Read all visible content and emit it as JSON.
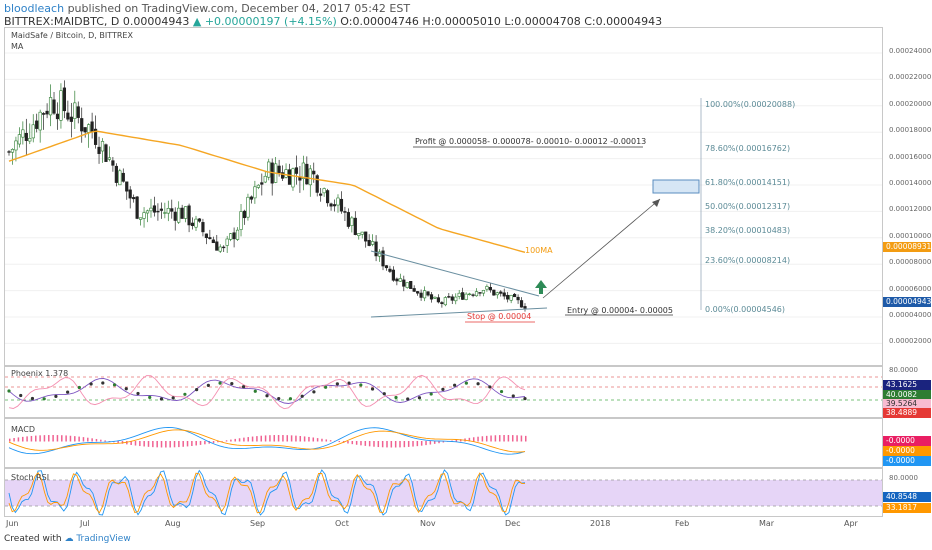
{
  "header": {
    "user": "bloodleach",
    "published_text": "published on TradingView.com, December 04, 2017 05:42 EST",
    "symbol": "BITTREX:MAIDBTC, D",
    "price": "0.00004943",
    "change": "+0.00000197 (+4.15%)",
    "ohlc": "O:0.00004746 H:0.00005010 L:0.00004708 C:0.00004943",
    "up_arrow": "▲"
  },
  "chart_title": "MaidSafe / Bitcoin, D, BITTREX",
  "indicator_label": "MA",
  "annotations": {
    "profit": "Profit @ 0.000058- 0.000078- 0.00010- 0.00012 -0.00013",
    "entry": "Entry @ 0.00004- 0.00005",
    "stop": "Stop @ 0.00004",
    "ma_label": "100MA"
  },
  "fibonacci": [
    {
      "label": "100.00%(0.00020088)",
      "value": 0.00020088
    },
    {
      "label": "78.60%(0.00016762)",
      "value": 0.00016762
    },
    {
      "label": "61.80%(0.00014151)",
      "value": 0.00014151
    },
    {
      "label": "50.00%(0.00012317)",
      "value": 0.00012317
    },
    {
      "label": "38.20%(0.00010483)",
      "value": 0.00010483
    },
    {
      "label": "23.60%(0.00008214)",
      "value": 8.214e-05
    },
    {
      "label": "0.00%(0.00004546)",
      "value": 4.546e-05
    }
  ],
  "price_axis": [
    "0.00024000",
    "0.00022000",
    "0.00020000",
    "0.00018000",
    "0.00016000",
    "0.00014000",
    "0.00012000",
    "0.00010000",
    "0.00008000",
    "0.00006000",
    "0.00004000",
    "0.00002000"
  ],
  "price_tags": [
    {
      "label": "0.00008931",
      "color": "#f39c12"
    },
    {
      "label": "0.00004943",
      "color": "#1e5aa8"
    }
  ],
  "phoenix": {
    "title": "Phoenix 1.378",
    "axis": "80.0000",
    "tags": [
      {
        "label": "43.1625",
        "color": "#1a237e"
      },
      {
        "label": "40.0082",
        "color": "#2e7d32"
      },
      {
        "label": "39.5264",
        "color": "#f8bbd0",
        "text": "#333"
      },
      {
        "label": "38.4889",
        "color": "#e53935"
      }
    ]
  },
  "macd": {
    "title": "MACD",
    "tags": [
      {
        "label": "-0.0000",
        "color": "#e91e63"
      },
      {
        "label": "-0.0000",
        "color": "#ff9800"
      },
      {
        "label": "-0.0000",
        "color": "#2196f3"
      }
    ]
  },
  "stochrsi": {
    "title": "Stoch RSI",
    "axis": "80.0000",
    "tags": [
      {
        "label": "40.8548",
        "color": "#1565c0"
      },
      {
        "label": "33.1817",
        "color": "#ff9800"
      }
    ]
  },
  "x_axis": [
    "Jun",
    "Jul",
    "Aug",
    "Sep",
    "Oct",
    "Nov",
    "Dec",
    "2018",
    "Feb",
    "Mar",
    "Apr"
  ],
  "footer": {
    "created": "Created with",
    "brand": "TradingView"
  },
  "chart_data": {
    "type": "candlestick",
    "title": "MaidSafe / Bitcoin, D, BITTREX",
    "ylim": [
      1e-05,
      0.00025
    ],
    "approx_close_path": [
      [
        "Jun",
        0.000165
      ],
      [
        "mid-Jun",
        0.000205
      ],
      [
        "Jul",
        0.00018
      ],
      [
        "mid-Jul",
        0.00012
      ],
      [
        "Aug",
        0.00012
      ],
      [
        "mid-Aug",
        9e-05
      ],
      [
        "Sep",
        0.00015
      ],
      [
        "mid-Sep",
        0.00015
      ],
      [
        "Oct",
        0.00011
      ],
      [
        "mid-Oct",
        7e-05
      ],
      [
        "Nov",
        5e-05
      ],
      [
        "mid-Nov",
        6.2e-05
      ],
      [
        "Dec",
        4.9e-05
      ]
    ],
    "ma100_path": [
      [
        "Jun",
        0.000158
      ],
      [
        "Jul",
        0.000181
      ],
      [
        "Aug",
        0.00017
      ],
      [
        "Sep",
        0.00015
      ],
      [
        "Oct",
        0.00014
      ],
      [
        "Nov",
        0.000107
      ],
      [
        "Dec",
        8.9e-05
      ]
    ]
  }
}
